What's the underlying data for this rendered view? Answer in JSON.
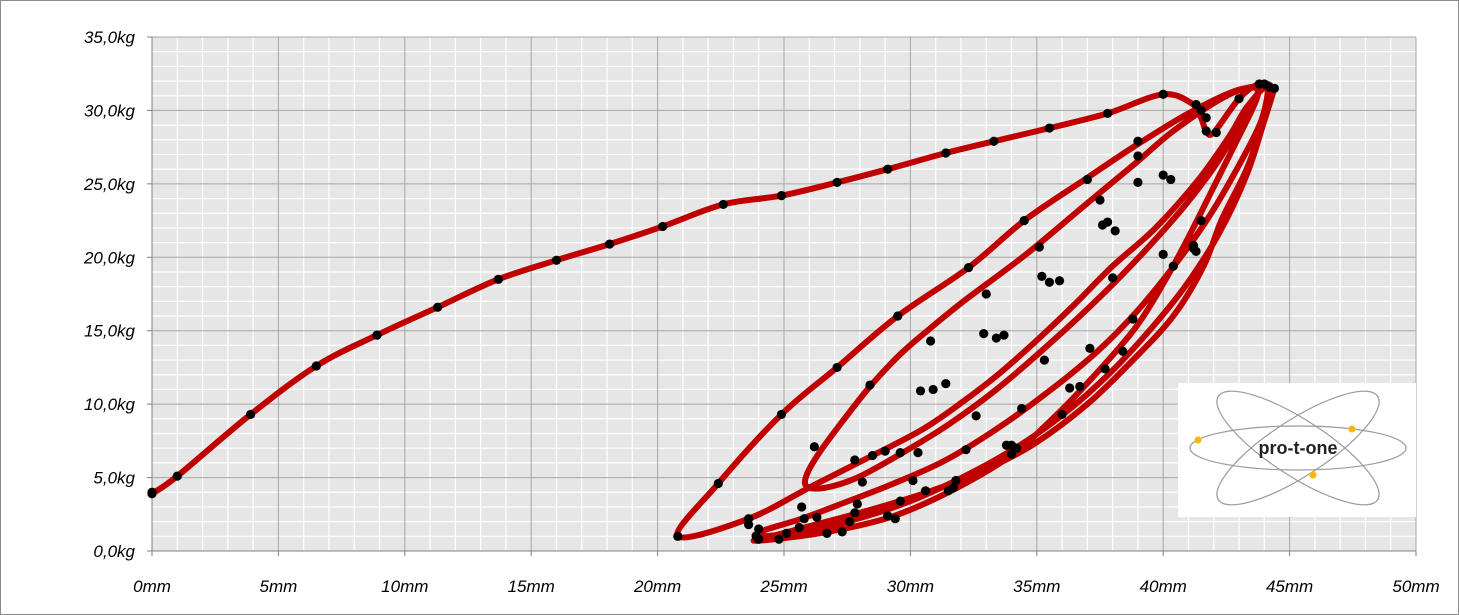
{
  "chart_data": {
    "type": "line",
    "title": "",
    "xlabel": "",
    "ylabel": "",
    "xlim": [
      0,
      50
    ],
    "ylim": [
      0,
      35
    ],
    "x_ticks": [
      "0mm",
      "5mm",
      "10mm",
      "15mm",
      "20mm",
      "25mm",
      "30mm",
      "35mm",
      "40mm",
      "45mm",
      "50mm"
    ],
    "y_ticks": [
      "0,0kg",
      "5,0kg",
      "10,0kg",
      "15,0kg",
      "20,0kg",
      "25,0kg",
      "30,0kg",
      "35,0kg"
    ],
    "grid": true,
    "minor_grid": true,
    "legend": "none",
    "colors": {
      "line": "#c00000",
      "marker": "#000000",
      "plot_bg": "#e6e6e6",
      "grid": "#a6a6a6"
    },
    "series": [
      {
        "values": [
          [
            0,
            3.9
          ],
          [
            1.0,
            5.1
          ],
          [
            3.9,
            9.3
          ],
          [
            6.5,
            12.6
          ],
          [
            8.9,
            14.7
          ],
          [
            11.3,
            16.6
          ],
          [
            13.7,
            18.5
          ],
          [
            16.0,
            19.8
          ],
          [
            18.1,
            20.9
          ],
          [
            20.2,
            22.1
          ],
          [
            22.6,
            23.6
          ],
          [
            24.9,
            24.2
          ],
          [
            27.1,
            25.1
          ],
          [
            29.1,
            26.0
          ],
          [
            31.4,
            27.1
          ],
          [
            33.3,
            27.9
          ],
          [
            35.5,
            28.8
          ],
          [
            37.8,
            29.8
          ],
          [
            40.0,
            31.1
          ],
          [
            41.2,
            30.4
          ],
          [
            41.5,
            29.5
          ],
          [
            41.7,
            28.6
          ],
          [
            42.0,
            28.5
          ],
          [
            43.0,
            30.8
          ],
          [
            43.8,
            31.8
          ],
          [
            44.3,
            31.4
          ],
          [
            43.9,
            29.0
          ],
          [
            43.3,
            26.0
          ],
          [
            42.3,
            22.5
          ],
          [
            41.6,
            19.4
          ],
          [
            40.4,
            16.0
          ],
          [
            38.8,
            13.0
          ],
          [
            37.0,
            10.0
          ],
          [
            34.9,
            7.3
          ],
          [
            32.9,
            5.5
          ],
          [
            30.5,
            3.9
          ],
          [
            28.0,
            2.6
          ],
          [
            25.8,
            1.6
          ],
          [
            24.4,
            0.95
          ],
          [
            23.8,
            0.7
          ],
          [
            24.6,
            0.8
          ],
          [
            26.7,
            1.3
          ],
          [
            29.2,
            2.3
          ],
          [
            31.5,
            4.0
          ],
          [
            33.9,
            6.4
          ],
          [
            35.5,
            8.8
          ],
          [
            37.2,
            11.8
          ],
          [
            38.9,
            15.2
          ],
          [
            40.1,
            18.5
          ],
          [
            41.1,
            21.7
          ],
          [
            42.0,
            24.8
          ],
          [
            42.9,
            27.9
          ],
          [
            43.7,
            30.8
          ],
          [
            43.6,
            31.6
          ],
          [
            42.4,
            30.9
          ],
          [
            40.4,
            28.6
          ],
          [
            38.9,
            26.4
          ],
          [
            36.8,
            23.4
          ],
          [
            34.5,
            20.1
          ],
          [
            32.1,
            17.0
          ],
          [
            30.6,
            14.9
          ],
          [
            29.6,
            13.4
          ],
          [
            28.4,
            11.2
          ],
          [
            27.3,
            8.8
          ],
          [
            26.4,
            6.7
          ],
          [
            25.9,
            5.2
          ],
          [
            25.9,
            4.4
          ],
          [
            26.6,
            4.3
          ],
          [
            27.9,
            5.0
          ],
          [
            29.6,
            6.6
          ],
          [
            31.5,
            8.6
          ],
          [
            33.4,
            11.0
          ],
          [
            35.5,
            14.1
          ],
          [
            37.5,
            17.3
          ],
          [
            39.2,
            20.3
          ],
          [
            40.8,
            23.4
          ],
          [
            42.0,
            26.1
          ],
          [
            42.9,
            28.6
          ],
          [
            43.6,
            30.7
          ],
          [
            43.7,
            31.5
          ],
          [
            42.8,
            31.3
          ],
          [
            41.0,
            29.8
          ],
          [
            38.9,
            27.6
          ],
          [
            36.9,
            25.3
          ],
          [
            34.5,
            22.5
          ],
          [
            32.3,
            19.3
          ],
          [
            29.5,
            16.0
          ],
          [
            27.1,
            12.5
          ],
          [
            24.9,
            9.3
          ],
          [
            22.4,
            4.6
          ],
          [
            20.8,
            1.0
          ],
          [
            23.6,
            2.2
          ],
          [
            26.2,
            4.5
          ],
          [
            28.5,
            6.5
          ],
          [
            30.5,
            8.3
          ],
          [
            32.1,
            10.2
          ],
          [
            33.6,
            12.2
          ],
          [
            35.1,
            14.5
          ],
          [
            36.5,
            16.8
          ],
          [
            38.0,
            19.4
          ],
          [
            39.7,
            22.0
          ],
          [
            41.4,
            25.3
          ],
          [
            42.6,
            28.2
          ],
          [
            43.3,
            30.2
          ],
          [
            44.1,
            31.6
          ],
          [
            43.9,
            29.4
          ],
          [
            43.1,
            26.6
          ],
          [
            41.9,
            23.0
          ],
          [
            40.6,
            19.8
          ],
          [
            39.0,
            16.4
          ],
          [
            37.4,
            13.6
          ],
          [
            35.5,
            10.9
          ],
          [
            33.4,
            8.3
          ],
          [
            31.3,
            6.1
          ],
          [
            29.2,
            4.5
          ],
          [
            27.4,
            3.3
          ],
          [
            25.7,
            2.2
          ],
          [
            24.2,
            1.4
          ],
          [
            23.9,
            1.0
          ],
          [
            25.2,
            1.2
          ],
          [
            27.5,
            2.0
          ],
          [
            30.0,
            3.4
          ],
          [
            32.5,
            5.4
          ],
          [
            34.6,
            7.5
          ],
          [
            36.4,
            9.8
          ],
          [
            38.0,
            12.3
          ],
          [
            39.5,
            15.1
          ],
          [
            40.9,
            18.1
          ],
          [
            42.2,
            21.6
          ],
          [
            43.3,
            25.6
          ],
          [
            44.0,
            29.3
          ],
          [
            44.4,
            31.5
          ]
        ]
      }
    ],
    "markers": [
      [
        0,
        3.9
      ],
      [
        0,
        4.0
      ],
      [
        1.0,
        5.1
      ],
      [
        3.9,
        9.3
      ],
      [
        6.5,
        12.6
      ],
      [
        8.9,
        14.7
      ],
      [
        11.3,
        16.6
      ],
      [
        13.7,
        18.5
      ],
      [
        16.0,
        19.8
      ],
      [
        18.1,
        20.9
      ],
      [
        20.2,
        22.1
      ],
      [
        22.6,
        23.6
      ],
      [
        24.9,
        24.2
      ],
      [
        27.1,
        25.1
      ],
      [
        29.1,
        26.0
      ],
      [
        31.4,
        27.1
      ],
      [
        33.3,
        27.9
      ],
      [
        35.5,
        28.8
      ],
      [
        37.8,
        29.8
      ],
      [
        40.0,
        31.1
      ],
      [
        41.3,
        30.4
      ],
      [
        41.5,
        30.0
      ],
      [
        41.7,
        29.5
      ],
      [
        41.7,
        28.6
      ],
      [
        42.1,
        28.5
      ],
      [
        43.0,
        30.8
      ],
      [
        43.8,
        31.8
      ],
      [
        44.0,
        31.8
      ],
      [
        44.2,
        31.6
      ],
      [
        44.4,
        31.5
      ],
      [
        37.0,
        25.3
      ],
      [
        39.0,
        27.9
      ],
      [
        39.0,
        26.9
      ],
      [
        39.0,
        25.1
      ],
      [
        40.0,
        25.6
      ],
      [
        40.3,
        25.3
      ],
      [
        37.5,
        23.9
      ],
      [
        37.6,
        22.2
      ],
      [
        37.8,
        22.4
      ],
      [
        38.1,
        21.8
      ],
      [
        34.5,
        22.5
      ],
      [
        32.3,
        19.3
      ],
      [
        29.5,
        16.0
      ],
      [
        27.1,
        12.5
      ],
      [
        24.9,
        9.3
      ],
      [
        22.4,
        4.6
      ],
      [
        20.8,
        1.0
      ],
      [
        35.1,
        20.7
      ],
      [
        35.2,
        18.7
      ],
      [
        35.5,
        18.3
      ],
      [
        35.9,
        18.4
      ],
      [
        33.0,
        17.5
      ],
      [
        30.8,
        14.3
      ],
      [
        32.9,
        14.8
      ],
      [
        33.4,
        14.5
      ],
      [
        33.7,
        14.7
      ],
      [
        28.4,
        11.3
      ],
      [
        30.4,
        10.9
      ],
      [
        30.9,
        11.0
      ],
      [
        31.4,
        11.4
      ],
      [
        26.2,
        7.1
      ],
      [
        27.8,
        6.2
      ],
      [
        28.5,
        6.5
      ],
      [
        29.0,
        6.8
      ],
      [
        28.1,
        4.7
      ],
      [
        29.6,
        6.7
      ],
      [
        30.3,
        6.7
      ],
      [
        32.2,
        6.9
      ],
      [
        25.7,
        3.0
      ],
      [
        26.3,
        2.3
      ],
      [
        25.8,
        2.2
      ],
      [
        25.6,
        1.6
      ],
      [
        27.9,
        3.2
      ],
      [
        27.8,
        2.6
      ],
      [
        27.6,
        2.0
      ],
      [
        27.3,
        1.3
      ],
      [
        30.6,
        4.1
      ],
      [
        31.8,
        4.8
      ],
      [
        31.5,
        4.1
      ],
      [
        31.7,
        4.3
      ],
      [
        26.7,
        1.2
      ],
      [
        25.1,
        1.2
      ],
      [
        24.8,
        0.8
      ],
      [
        24.0,
        0.8
      ],
      [
        23.9,
        1.0
      ],
      [
        24.0,
        1.5
      ],
      [
        23.6,
        2.2
      ],
      [
        23.6,
        1.8
      ],
      [
        29.1,
        2.4
      ],
      [
        29.4,
        2.2
      ],
      [
        29.6,
        3.4
      ],
      [
        30.1,
        4.8
      ],
      [
        32.6,
        9.2
      ],
      [
        34.4,
        9.7
      ],
      [
        34.2,
        7.0
      ],
      [
        34.0,
        6.6
      ],
      [
        34.2,
        7.0
      ],
      [
        34.0,
        7.2
      ],
      [
        33.8,
        7.2
      ],
      [
        36.3,
        11.1
      ],
      [
        36.7,
        11.2
      ],
      [
        37.1,
        13.8
      ],
      [
        38.4,
        13.6
      ],
      [
        37.7,
        12.4
      ],
      [
        36.0,
        9.3
      ],
      [
        35.3,
        13.0
      ],
      [
        38.8,
        15.8
      ],
      [
        38.0,
        18.6
      ],
      [
        40.0,
        20.2
      ],
      [
        40.4,
        19.4
      ],
      [
        41.2,
        20.6
      ],
      [
        41.3,
        20.4
      ],
      [
        41.5,
        22.5
      ],
      [
        41.2,
        20.8
      ]
    ]
  },
  "logo": {
    "text": "pro-t-one"
  }
}
